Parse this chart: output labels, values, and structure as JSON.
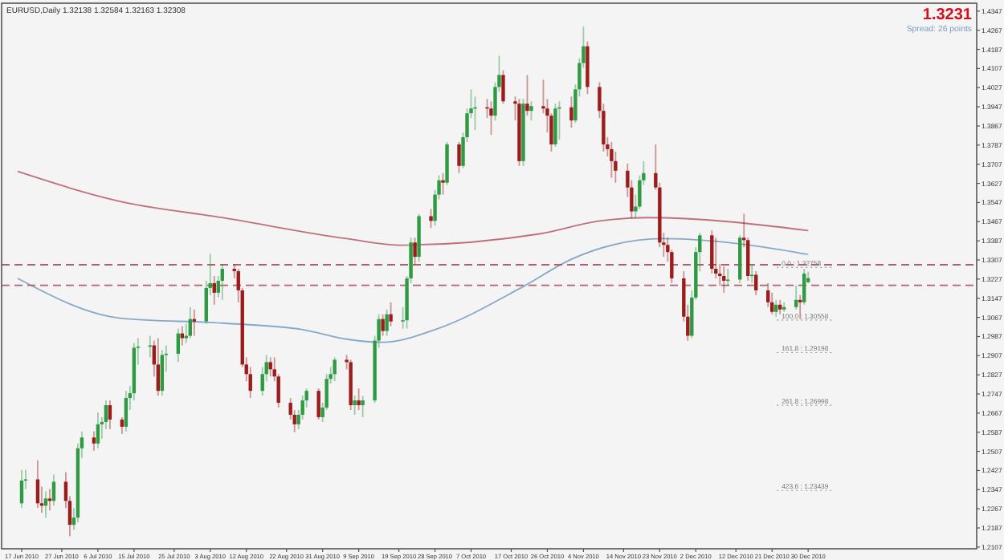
{
  "chart_data": {
    "type": "candlestick",
    "title": "EURUSD,Daily  1.32138 1.32584 1.32163 1.32308",
    "annotations": [
      "1.3231",
      "Spread: 26 points"
    ],
    "x": [
      "2010-06-17",
      "2010-06-18",
      "2010-06-21",
      "2010-06-22",
      "2010-06-23",
      "2010-06-24",
      "2010-06-25",
      "2010-06-28",
      "2010-06-29",
      "2010-06-30",
      "2010-07-01",
      "2010-07-02",
      "2010-07-05",
      "2010-07-06",
      "2010-07-07",
      "2010-07-08",
      "2010-07-09",
      "2010-07-12",
      "2010-07-13",
      "2010-07-14",
      "2010-07-15",
      "2010-07-16",
      "2010-07-19",
      "2010-07-20",
      "2010-07-21",
      "2010-07-22",
      "2010-07-23",
      "2010-07-26",
      "2010-07-27",
      "2010-07-28",
      "2010-07-29",
      "2010-07-30",
      "2010-08-02",
      "2010-08-03",
      "2010-08-04",
      "2010-08-05",
      "2010-08-06",
      "2010-08-09",
      "2010-08-10",
      "2010-08-11",
      "2010-08-12",
      "2010-08-13",
      "2010-08-16",
      "2010-08-17",
      "2010-08-18",
      "2010-08-19",
      "2010-08-20",
      "2010-08-23",
      "2010-08-24",
      "2010-08-25",
      "2010-08-26",
      "2010-08-27",
      "2010-08-30",
      "2010-08-31",
      "2010-09-01",
      "2010-09-02",
      "2010-09-03",
      "2010-09-06",
      "2010-09-07",
      "2010-09-08",
      "2010-09-09",
      "2010-09-10",
      "2010-09-13",
      "2010-09-14",
      "2010-09-15",
      "2010-09-16",
      "2010-09-17",
      "2010-09-20",
      "2010-09-21",
      "2010-09-22",
      "2010-09-23",
      "2010-09-24",
      "2010-09-27",
      "2010-09-28",
      "2010-09-29",
      "2010-09-30",
      "2010-10-01",
      "2010-10-04",
      "2010-10-05",
      "2010-10-06",
      "2010-10-07",
      "2010-10-08",
      "2010-10-11",
      "2010-10-12",
      "2010-10-13",
      "2010-10-14",
      "2010-10-15",
      "2010-10-18",
      "2010-10-19",
      "2010-10-20",
      "2010-10-21",
      "2010-10-22",
      "2010-10-25",
      "2010-10-26",
      "2010-10-27",
      "2010-10-28",
      "2010-10-29",
      "2010-11-01",
      "2010-11-02",
      "2010-11-03",
      "2010-11-04",
      "2010-11-05",
      "2010-11-08",
      "2010-11-09",
      "2010-11-10",
      "2010-11-11",
      "2010-11-12",
      "2010-11-15",
      "2010-11-16",
      "2010-11-17",
      "2010-11-18",
      "2010-11-19",
      "2010-11-22",
      "2010-11-23",
      "2010-11-24",
      "2010-11-25",
      "2010-11-26",
      "2010-11-29",
      "2010-11-30",
      "2010-12-01",
      "2010-12-02",
      "2010-12-03",
      "2010-12-06",
      "2010-12-07",
      "2010-12-08",
      "2010-12-09",
      "2010-12-10",
      "2010-12-13",
      "2010-12-14",
      "2010-12-15",
      "2010-12-16",
      "2010-12-17",
      "2010-12-20",
      "2010-12-21",
      "2010-12-22",
      "2010-12-23",
      "2010-12-24",
      "2010-12-27",
      "2010-12-28",
      "2010-12-29",
      "2010-12-30"
    ],
    "ohlc": [
      [
        1.229,
        1.243,
        1.227,
        1.2385
      ],
      [
        1.2385,
        1.243,
        1.235,
        1.239
      ],
      [
        1.239,
        1.247,
        1.227,
        1.229
      ],
      [
        1.229,
        1.236,
        1.225,
        1.228
      ],
      [
        1.228,
        1.234,
        1.223,
        1.231
      ],
      [
        1.231,
        1.235,
        1.226,
        1.23
      ],
      [
        1.23,
        1.241,
        1.228,
        1.238
      ],
      [
        1.238,
        1.242,
        1.227,
        1.23
      ],
      [
        1.23,
        1.232,
        1.2153,
        1.22
      ],
      [
        1.22,
        1.227,
        1.218,
        1.223
      ],
      [
        1.223,
        1.254,
        1.221,
        1.252
      ],
      [
        1.252,
        1.259,
        1.248,
        1.2565
      ],
      [
        1.2565,
        1.259,
        1.251,
        1.254
      ],
      [
        1.254,
        1.267,
        1.252,
        1.262
      ],
      [
        1.262,
        1.265,
        1.256,
        1.263
      ],
      [
        1.263,
        1.272,
        1.26,
        1.27
      ],
      [
        1.27,
        1.272,
        1.26,
        1.264
      ],
      [
        1.264,
        1.265,
        1.258,
        1.261
      ],
      [
        1.261,
        1.276,
        1.259,
        1.273
      ],
      [
        1.273,
        1.278,
        1.268,
        1.275
      ],
      [
        1.275,
        1.296,
        1.272,
        1.294
      ],
      [
        1.294,
        1.298,
        1.287,
        1.2945
      ],
      [
        1.2945,
        1.299,
        1.29,
        1.295
      ],
      [
        1.295,
        1.297,
        1.282,
        1.287
      ],
      [
        1.287,
        1.298,
        1.274,
        1.276
      ],
      [
        1.276,
        1.293,
        1.274,
        1.291
      ],
      [
        1.291,
        1.295,
        1.284,
        1.2915
      ],
      [
        1.2915,
        1.302,
        1.288,
        1.3
      ],
      [
        1.3,
        1.303,
        1.295,
        1.298
      ],
      [
        1.298,
        1.304,
        1.296,
        1.299
      ],
      [
        1.299,
        1.311,
        1.298,
        1.306
      ],
      [
        1.306,
        1.31,
        1.299,
        1.305
      ],
      [
        1.305,
        1.322,
        1.304,
        1.319
      ],
      [
        1.319,
        1.3333,
        1.316,
        1.321
      ],
      [
        1.321,
        1.324,
        1.312,
        1.317
      ],
      [
        1.317,
        1.324,
        1.315,
        1.322
      ],
      [
        1.322,
        1.329,
        1.314,
        1.327
      ],
      [
        1.327,
        1.329,
        1.323,
        1.326
      ],
      [
        1.326,
        1.327,
        1.313,
        1.318
      ],
      [
        1.318,
        1.319,
        1.286,
        1.287
      ],
      [
        1.287,
        1.29,
        1.28,
        1.283
      ],
      [
        1.283,
        1.286,
        1.273,
        1.276
      ],
      [
        1.276,
        1.286,
        1.274,
        1.283
      ],
      [
        1.283,
        1.291,
        1.28,
        1.288
      ],
      [
        1.288,
        1.29,
        1.282,
        1.285
      ],
      [
        1.285,
        1.29,
        1.28,
        1.282
      ],
      [
        1.282,
        1.283,
        1.269,
        1.271
      ],
      [
        1.271,
        1.273,
        1.264,
        1.266
      ],
      [
        1.266,
        1.268,
        1.2587,
        1.262
      ],
      [
        1.262,
        1.268,
        1.26,
        1.266
      ],
      [
        1.266,
        1.274,
        1.264,
        1.272
      ],
      [
        1.272,
        1.277,
        1.269,
        1.276
      ],
      [
        1.276,
        1.277,
        1.264,
        1.265
      ],
      [
        1.265,
        1.271,
        1.263,
        1.269
      ],
      [
        1.269,
        1.283,
        1.268,
        1.281
      ],
      [
        1.281,
        1.286,
        1.279,
        1.283
      ],
      [
        1.283,
        1.29,
        1.28,
        1.289
      ],
      [
        1.289,
        1.291,
        1.285,
        1.288
      ],
      [
        1.288,
        1.289,
        1.268,
        1.27
      ],
      [
        1.27,
        1.274,
        1.266,
        1.272
      ],
      [
        1.272,
        1.277,
        1.268,
        1.27
      ],
      [
        1.27,
        1.274,
        1.265,
        1.272
      ],
      [
        1.272,
        1.299,
        1.271,
        1.297
      ],
      [
        1.297,
        1.308,
        1.294,
        1.306
      ],
      [
        1.306,
        1.308,
        1.299,
        1.301
      ],
      [
        1.301,
        1.31,
        1.299,
        1.308
      ],
      [
        1.308,
        1.313,
        1.303,
        1.305
      ],
      [
        1.305,
        1.311,
        1.302,
        1.3055
      ],
      [
        1.3055,
        1.324,
        1.302,
        1.323
      ],
      [
        1.323,
        1.34,
        1.321,
        1.338
      ],
      [
        1.338,
        1.34,
        1.329,
        1.332
      ],
      [
        1.332,
        1.35,
        1.33,
        1.349
      ],
      [
        1.349,
        1.352,
        1.344,
        1.347
      ],
      [
        1.347,
        1.36,
        1.345,
        1.358
      ],
      [
        1.358,
        1.366,
        1.356,
        1.364
      ],
      [
        1.364,
        1.367,
        1.358,
        1.363
      ],
      [
        1.363,
        1.38,
        1.362,
        1.379
      ],
      [
        1.379,
        1.38,
        1.367,
        1.37
      ],
      [
        1.37,
        1.384,
        1.369,
        1.382
      ],
      [
        1.382,
        1.394,
        1.38,
        1.392
      ],
      [
        1.392,
        1.402,
        1.39,
        1.394
      ],
      [
        1.394,
        1.399,
        1.385,
        1.3945
      ],
      [
        1.3945,
        1.398,
        1.39,
        1.394
      ],
      [
        1.394,
        1.397,
        1.383,
        1.391
      ],
      [
        1.391,
        1.405,
        1.389,
        1.403
      ],
      [
        1.403,
        1.416,
        1.401,
        1.408
      ],
      [
        1.408,
        1.41,
        1.396,
        1.397
      ],
      [
        1.397,
        1.399,
        1.389,
        1.396
      ],
      [
        1.396,
        1.398,
        1.37,
        1.372
      ],
      [
        1.372,
        1.398,
        1.37,
        1.396
      ],
      [
        1.396,
        1.408,
        1.391,
        1.393
      ],
      [
        1.393,
        1.397,
        1.389,
        1.395
      ],
      [
        1.395,
        1.406,
        1.392,
        1.394
      ],
      [
        1.394,
        1.398,
        1.384,
        1.391
      ],
      [
        1.391,
        1.392,
        1.376,
        1.379
      ],
      [
        1.379,
        1.396,
        1.378,
        1.394
      ],
      [
        1.394,
        1.397,
        1.381,
        1.3945
      ],
      [
        1.3945,
        1.399,
        1.386,
        1.389
      ],
      [
        1.389,
        1.404,
        1.388,
        1.402
      ],
      [
        1.402,
        1.415,
        1.399,
        1.413
      ],
      [
        1.413,
        1.4282,
        1.411,
        1.42
      ],
      [
        1.42,
        1.422,
        1.4,
        1.403
      ],
      [
        1.403,
        1.405,
        1.39,
        1.393
      ],
      [
        1.393,
        1.396,
        1.376,
        1.379
      ],
      [
        1.379,
        1.382,
        1.374,
        1.377
      ],
      [
        1.377,
        1.38,
        1.365,
        1.372
      ],
      [
        1.372,
        1.376,
        1.363,
        1.368
      ],
      [
        1.368,
        1.371,
        1.357,
        1.361
      ],
      [
        1.361,
        1.364,
        1.348,
        1.351
      ],
      [
        1.351,
        1.358,
        1.348,
        1.353
      ],
      [
        1.353,
        1.366,
        1.352,
        1.364
      ],
      [
        1.364,
        1.372,
        1.362,
        1.367
      ],
      [
        1.367,
        1.379,
        1.36,
        1.361
      ],
      [
        1.361,
        1.363,
        1.336,
        1.338
      ],
      [
        1.338,
        1.342,
        1.332,
        1.337
      ],
      [
        1.337,
        1.34,
        1.33,
        1.334
      ],
      [
        1.334,
        1.335,
        1.321,
        1.323
      ],
      [
        1.323,
        1.326,
        1.305,
        1.307
      ],
      [
        1.307,
        1.312,
        1.2969,
        1.299
      ],
      [
        1.299,
        1.318,
        1.298,
        1.315
      ],
      [
        1.315,
        1.336,
        1.314,
        1.334
      ],
      [
        1.334,
        1.342,
        1.326,
        1.341
      ],
      [
        1.341,
        1.343,
        1.325,
        1.327
      ],
      [
        1.327,
        1.34,
        1.323,
        1.325
      ],
      [
        1.325,
        1.329,
        1.32,
        1.324
      ],
      [
        1.324,
        1.328,
        1.317,
        1.322
      ],
      [
        1.322,
        1.327,
        1.32,
        1.3225
      ],
      [
        1.3225,
        1.341,
        1.321,
        1.34
      ],
      [
        1.34,
        1.35,
        1.336,
        1.339
      ],
      [
        1.339,
        1.34,
        1.322,
        1.324
      ],
      [
        1.324,
        1.329,
        1.321,
        1.3245
      ],
      [
        1.3245,
        1.326,
        1.316,
        1.318
      ],
      [
        1.318,
        1.321,
        1.311,
        1.313
      ],
      [
        1.313,
        1.317,
        1.308,
        1.309
      ],
      [
        1.309,
        1.314,
        1.307,
        1.312
      ],
      [
        1.312,
        1.314,
        1.308,
        1.31
      ],
      [
        1.31,
        1.313,
        1.309,
        1.311
      ],
      [
        1.311,
        1.32,
        1.31,
        1.314
      ],
      [
        1.314,
        1.316,
        1.306,
        1.313
      ],
      [
        1.313,
        1.327,
        1.312,
        1.325
      ],
      [
        1.3214,
        1.3258,
        1.321,
        1.3231
      ]
    ],
    "colors": [
      "#2e9a42",
      "#2e9a42",
      "#9c1c1c",
      "#9c1c1c",
      "#2e9a42",
      "#9c1c1c",
      "#2e9a42",
      "#9c1c1c",
      "#9c1c1c",
      "#2e9a42",
      "#2e9a42",
      "#2e9a42",
      "#9c1c1c",
      "#2e9a42",
      "#2e9a42",
      "#2e9a42",
      "#9c1c1c",
      "#9c1c1c",
      "#2e9a42",
      "#2e9a42",
      "#2e9a42",
      "#2e9a42",
      "#2e9a42",
      "#9c1c1c",
      "#9c1c1c",
      "#2e9a42",
      "#2e9a42",
      "#2e9a42",
      "#9c1c1c",
      "#2e9a42",
      "#2e9a42",
      "#9c1c1c",
      "#2e9a42",
      "#2e9a42",
      "#9c1c1c",
      "#2e9a42",
      "#2e9a42",
      "#9c1c1c",
      "#9c1c1c",
      "#9c1c1c",
      "#9c1c1c",
      "#9c1c1c",
      "#2e9a42",
      "#2e9a42",
      "#9c1c1c",
      "#9c1c1c",
      "#9c1c1c",
      "#9c1c1c",
      "#9c1c1c",
      "#2e9a42",
      "#2e9a42",
      "#2e9a42",
      "#9c1c1c",
      "#2e9a42",
      "#2e9a42",
      "#2e9a42",
      "#2e9a42",
      "#9c1c1c",
      "#9c1c1c",
      "#2e9a42",
      "#9c1c1c",
      "#2e9a42",
      "#2e9a42",
      "#2e9a42",
      "#9c1c1c",
      "#2e9a42",
      "#9c1c1c",
      "#2e9a42",
      "#2e9a42",
      "#2e9a42",
      "#9c1c1c",
      "#2e9a42",
      "#9c1c1c",
      "#2e9a42",
      "#2e9a42",
      "#9c1c1c",
      "#2e9a42",
      "#9c1c1c",
      "#2e9a42",
      "#2e9a42",
      "#2e9a42",
      "#2e9a42",
      "#9c1c1c",
      "#9c1c1c",
      "#2e9a42",
      "#2e9a42",
      "#9c1c1c",
      "#9c1c1c",
      "#9c1c1c",
      "#2e9a42",
      "#9c1c1c",
      "#2e9a42",
      "#9c1c1c",
      "#9c1c1c",
      "#9c1c1c",
      "#2e9a42",
      "#2e9a42",
      "#9c1c1c",
      "#2e9a42",
      "#2e9a42",
      "#2e9a42",
      "#9c1c1c",
      "#9c1c1c",
      "#9c1c1c",
      "#9c1c1c",
      "#9c1c1c",
      "#9c1c1c",
      "#9c1c1c",
      "#9c1c1c",
      "#2e9a42",
      "#2e9a42",
      "#2e9a42",
      "#9c1c1c",
      "#9c1c1c",
      "#9c1c1c",
      "#9c1c1c",
      "#9c1c1c",
      "#9c1c1c",
      "#9c1c1c",
      "#2e9a42",
      "#2e9a42",
      "#2e9a42",
      "#9c1c1c",
      "#9c1c1c",
      "#9c1c1c",
      "#9c1c1c",
      "#2e9a42",
      "#2e9a42",
      "#9c1c1c",
      "#9c1c1c",
      "#2e9a42",
      "#9c1c1c",
      "#9c1c1c",
      "#9c1c1c",
      "#2e9a42",
      "#9c1c1c",
      "#2e9a42",
      "#2e9a42",
      "#9c1c1c",
      "#2e9a42",
      "#2e9a42"
    ],
    "series": [
      {
        "type": "line",
        "color": "#c0707c",
        "x": [
          "2010-06-16",
          "2010-07-12",
          "2010-08-06",
          "2010-09-06",
          "2010-09-19",
          "2010-10-24",
          "2010-11-08",
          "2010-11-20",
          "2010-12-30"
        ],
        "values": [
          1.3677,
          1.355,
          1.3484,
          1.3396,
          1.3369,
          1.3416,
          1.347,
          1.3484,
          1.343
        ]
      },
      {
        "type": "line",
        "color": "#86a9c8",
        "x": [
          "2010-06-16",
          "2010-07-12",
          "2010-08-06",
          "2010-08-26",
          "2010-09-06",
          "2010-09-15",
          "2010-09-28",
          "2010-10-20",
          "2010-11-01",
          "2010-11-24",
          "2010-12-18",
          "2010-12-30"
        ],
        "values": [
          1.323,
          1.3063,
          1.3043,
          1.3016,
          1.2976,
          1.2963,
          1.3016,
          1.3196,
          1.331,
          1.3396,
          1.3363,
          1.333
        ]
      }
    ],
    "ref_lines": [
      {
        "axis": "y",
        "value": 1.3287,
        "color": "#b0606e",
        "line_style": "dashed"
      },
      {
        "axis": "y",
        "value": 1.3201,
        "color": "#b0606e",
        "line_style": "dashed"
      },
      {
        "axis": "y",
        "value": 1.32758,
        "label": "0.0 : 1.32758",
        "color": "#9a9a9a",
        "line_style": "dotted"
      },
      {
        "axis": "y",
        "value": 1.30558,
        "label": "100.0 : 1.30558",
        "color": "#9a9a9a",
        "line_style": "dotted"
      },
      {
        "axis": "y",
        "value": 1.29198,
        "label": "161.8 : 1.29198",
        "color": "#9a9a9a",
        "line_style": "dotted"
      },
      {
        "axis": "y",
        "value": 1.26998,
        "label": "261.8 : 1.26998",
        "color": "#9a9a9a",
        "line_style": "dotted"
      },
      {
        "axis": "y",
        "value": 1.23439,
        "label": "423.6 : 1.23439",
        "color": "#9a9a9a",
        "line_style": "dotted"
      }
    ],
    "xlim": [
      "2010-06-12",
      "2011-02-10"
    ],
    "xticks": [
      {
        "value": "2010-06-17",
        "label": "17 Jun 2010"
      },
      {
        "value": "2010-06-27",
        "label": "27 Jun 2010"
      },
      {
        "value": "2010-07-06",
        "label": "6 Jul 2010"
      },
      {
        "value": "2010-07-15",
        "label": "15 Jul 2010"
      },
      {
        "value": "2010-07-25",
        "label": "25 Jul 2010"
      },
      {
        "value": "2010-08-03",
        "label": "3 Aug 2010"
      },
      {
        "value": "2010-08-12",
        "label": "12 Aug 2010"
      },
      {
        "value": "2010-08-22",
        "label": "22 Aug 2010"
      },
      {
        "value": "2010-08-31",
        "label": "31 Aug 2010"
      },
      {
        "value": "2010-09-09",
        "label": "9 Sep 2010"
      },
      {
        "value": "2010-09-19",
        "label": "19 Sep 2010"
      },
      {
        "value": "2010-09-28",
        "label": "28 Sep 2010"
      },
      {
        "value": "2010-10-07",
        "label": "7 Oct 2010"
      },
      {
        "value": "2010-10-17",
        "label": "17 Oct 2010"
      },
      {
        "value": "2010-10-26",
        "label": "26 Oct 2010"
      },
      {
        "value": "2010-11-04",
        "label": "4 Nov 2010"
      },
      {
        "value": "2010-11-14",
        "label": "14 Nov 2010"
      },
      {
        "value": "2010-11-23",
        "label": "23 Nov 2010"
      },
      {
        "value": "2010-12-02",
        "label": "2 Dec 2010"
      },
      {
        "value": "2010-12-12",
        "label": "12 Dec 2010"
      },
      {
        "value": "2010-12-21",
        "label": "21 Dec 2010"
      },
      {
        "value": "2010-12-30",
        "label": "30 Dec 2010"
      }
    ],
    "ylim": [
      1.21,
      1.438
    ],
    "yticks": [
      1.2107,
      1.2187,
      1.2267,
      1.2347,
      1.2427,
      1.2507,
      1.2587,
      1.2667,
      1.2747,
      1.2827,
      1.2907,
      1.2987,
      1.3067,
      1.3147,
      1.3227,
      1.3307,
      1.3387,
      1.3467,
      1.3547,
      1.3627,
      1.3707,
      1.3787,
      1.3867,
      1.3947,
      1.4027,
      1.4107,
      1.4187,
      1.4267,
      1.4347
    ]
  }
}
